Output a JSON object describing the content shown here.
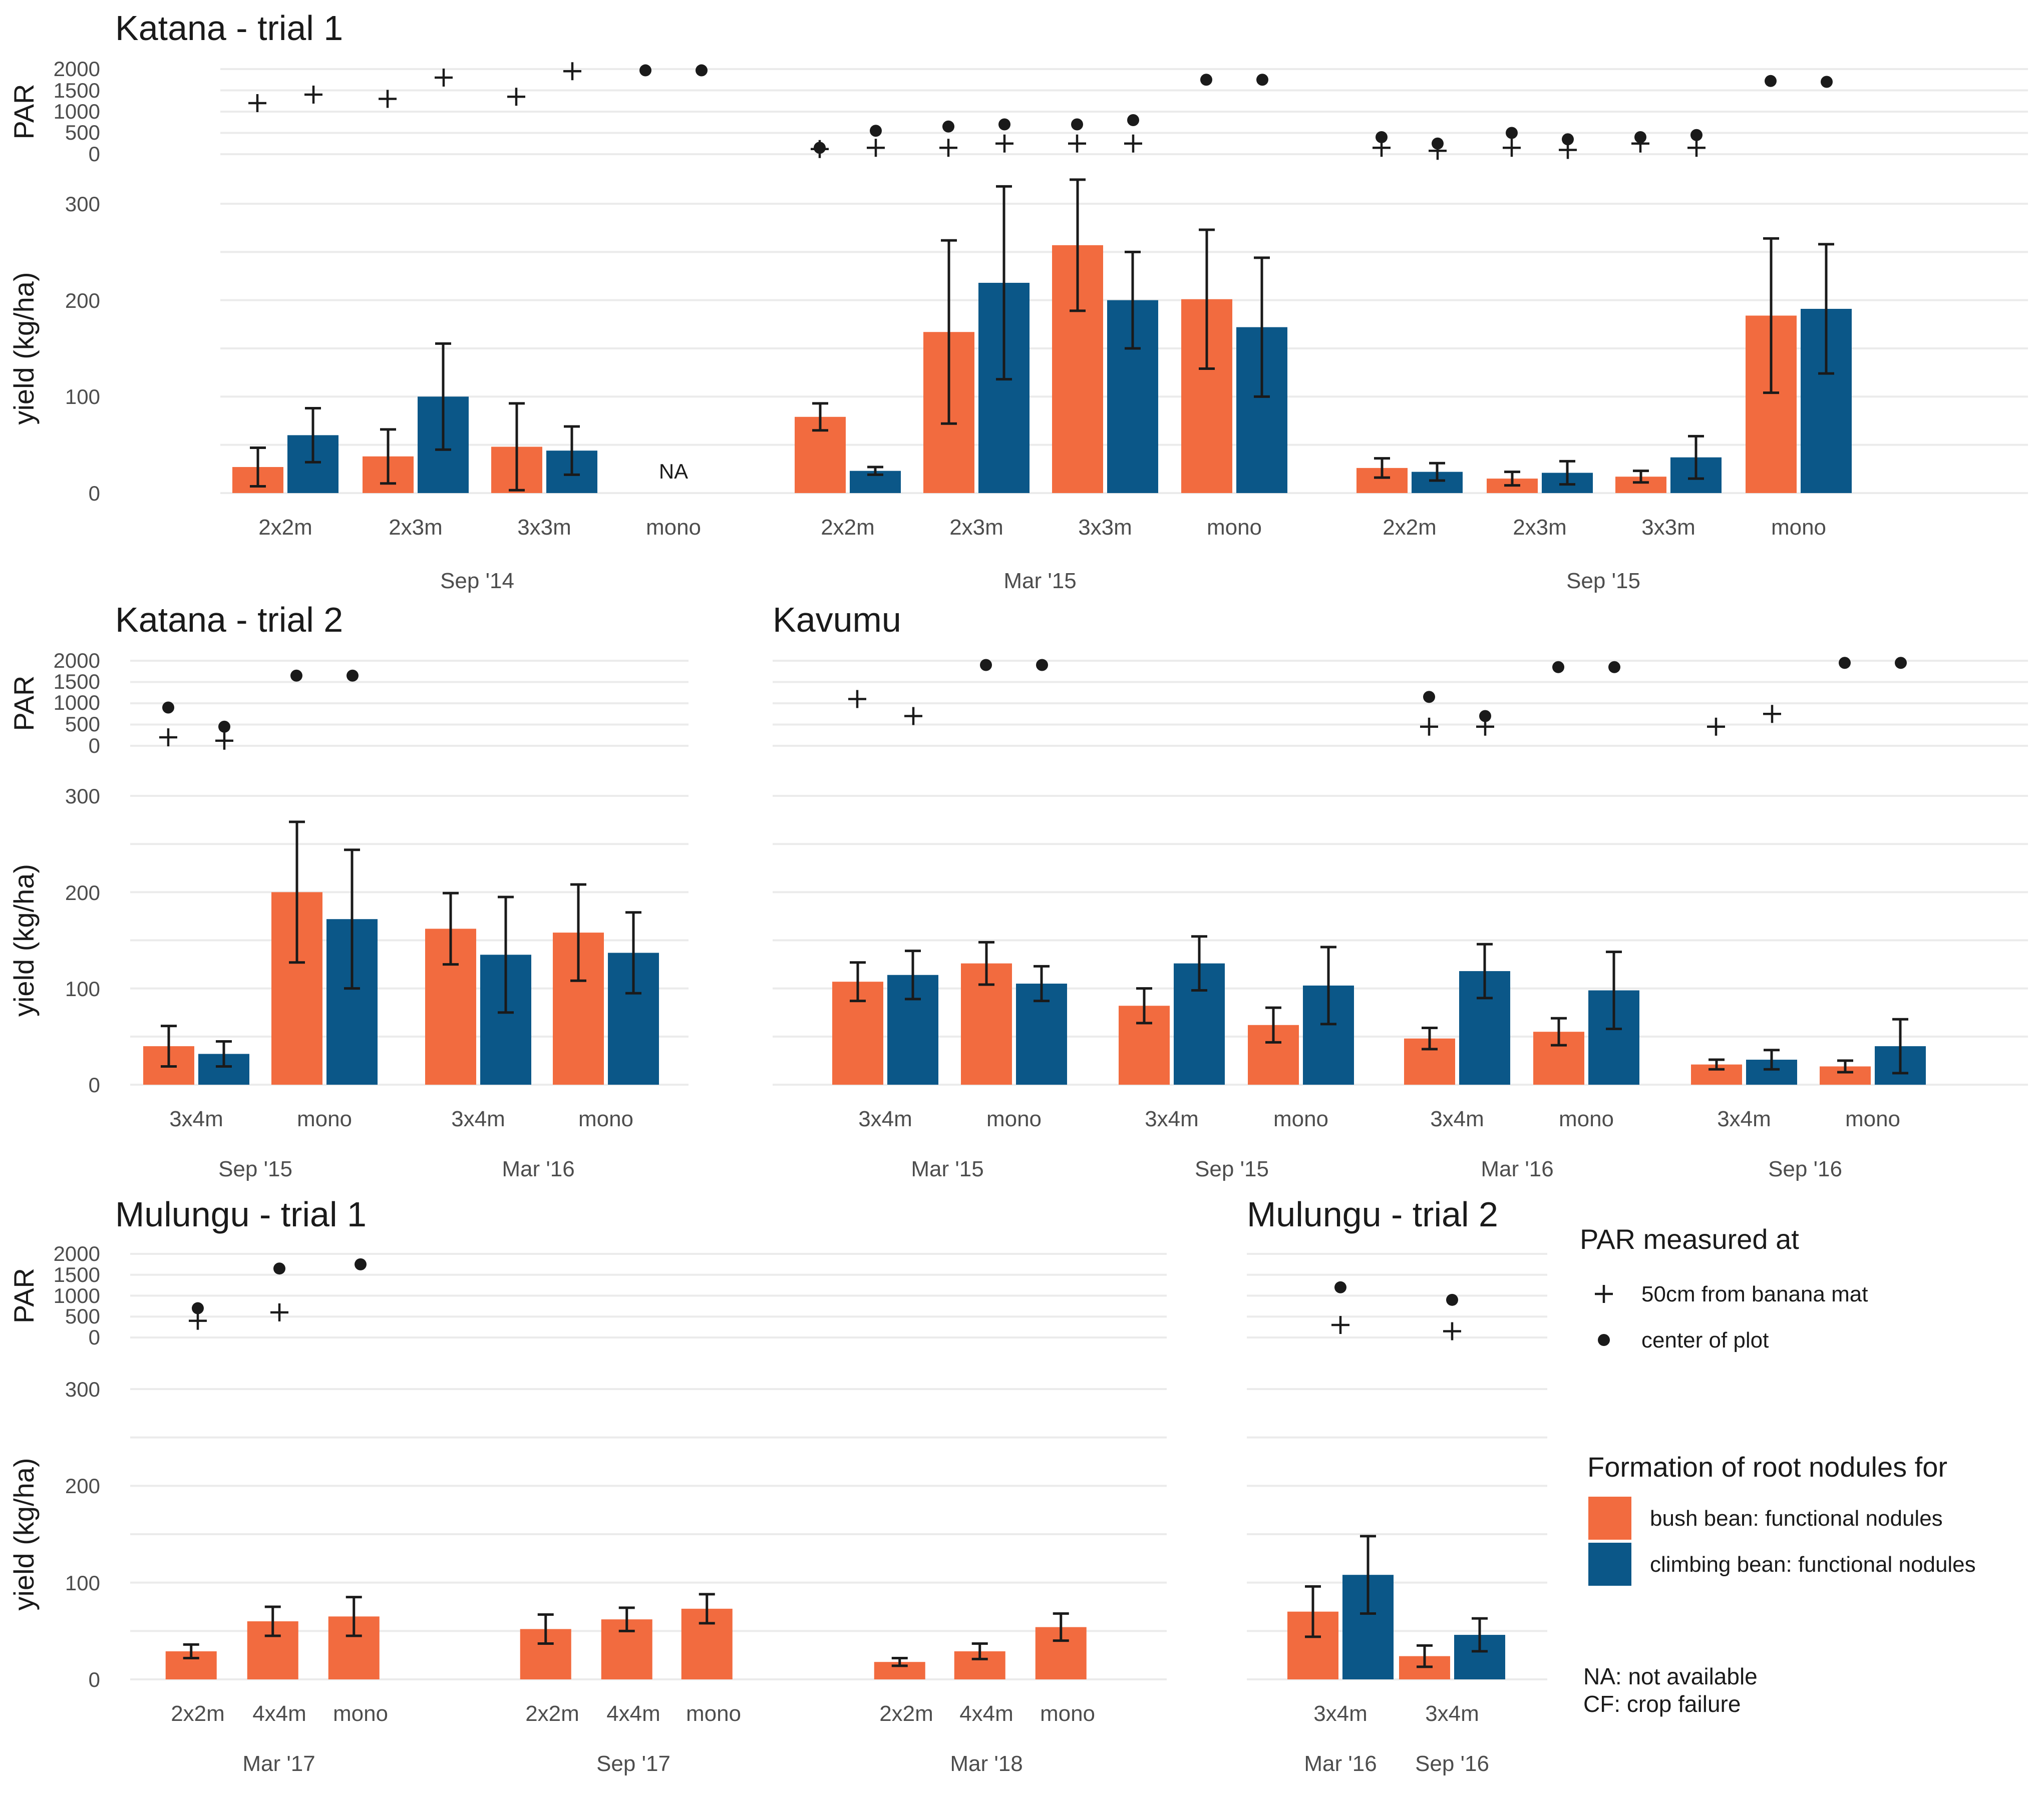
{
  "colors": {
    "bush": "#f26b3f",
    "climbing": "#0b5788",
    "ink": "#1a1a1a"
  },
  "legend": {
    "par_title": "PAR measured at",
    "par_items": [
      {
        "shape": "plus",
        "label": "50cm from banana mat"
      },
      {
        "shape": "dot",
        "label": "center of plot"
      }
    ],
    "fill_title": "Formation of root nodules for",
    "fill_items": [
      {
        "key": "bush",
        "label": "bush bean: functional nodules"
      },
      {
        "key": "climbing",
        "label": "climbing bean: functional nodules"
      }
    ],
    "notes": [
      "NA: not available",
      "CF: crop failure"
    ]
  },
  "chart_data": [
    {
      "type": "bar",
      "title": "Katana - trial 1",
      "ylabel_par": "PAR",
      "ylabel_yield": "yield (kg/ha)",
      "par_ticks": [
        "2000",
        "1500",
        "1000",
        "500",
        "0"
      ],
      "par_range": [
        0,
        2000
      ],
      "yield_ticks": [
        "300",
        "200",
        "100",
        "0"
      ],
      "yield_range": [
        0,
        300
      ],
      "groups": [
        {
          "season": "Sep '14",
          "categories": [
            {
              "label": "2x2m",
              "bush": 27,
              "bush_err": 20,
              "climbing": 60,
              "climbing_err": 28,
              "par_edge": [
                1200,
                1400
              ],
              "par_center": []
            },
            {
              "label": "2x3m",
              "bush": 38,
              "bush_err": 28,
              "climbing": 100,
              "climbing_err": 55,
              "par_edge": [
                1300,
                1800
              ],
              "par_center": []
            },
            {
              "label": "3x3m",
              "bush": 48,
              "bush_err": 45,
              "climbing": 44,
              "climbing_err": 25,
              "par_edge": [
                1350,
                1950
              ],
              "par_center": []
            },
            {
              "label": "mono",
              "na": "NA",
              "par_edge": [],
              "par_center": [
                1970,
                1970
              ]
            }
          ]
        },
        {
          "season": "Mar '15",
          "categories": [
            {
              "label": "2x2m",
              "bush": 79,
              "bush_err": 14,
              "climbing": 23,
              "climbing_err": 4,
              "par_edge": [
                120,
                150
              ],
              "par_center": [
                150,
                550
              ]
            },
            {
              "label": "2x3m",
              "bush": 167,
              "bush_err": 95,
              "climbing": 218,
              "climbing_err": 100,
              "par_edge": [
                150,
                250
              ],
              "par_center": [
                650,
                700
              ]
            },
            {
              "label": "3x3m",
              "bush": 257,
              "bush_err": 68,
              "climbing": 200,
              "climbing_err": 50,
              "par_edge": [
                250,
                250
              ],
              "par_center": [
                700,
                800
              ]
            },
            {
              "label": "mono",
              "par_edge": [],
              "par_center": [
                1750,
                1750
              ]
            }
          ],
          "mono": {
            "bush": 201,
            "bush_err": 72,
            "climbing": 172,
            "climbing_err": 72
          }
        },
        {
          "season": "Sep '15",
          "categories": [
            {
              "label": "2x2m",
              "bush": 26,
              "bush_err": 10,
              "climbing": 22,
              "climbing_err": 9,
              "par_edge": [
                150,
                80
              ],
              "par_center": [
                400,
                250
              ]
            },
            {
              "label": "2x3m",
              "bush": 15,
              "bush_err": 7,
              "climbing": 21,
              "climbing_err": 12,
              "par_edge": [
                150,
                100
              ],
              "par_center": [
                500,
                350
              ]
            },
            {
              "label": "3x3m",
              "bush": 17,
              "bush_err": 6,
              "climbing": 37,
              "climbing_err": 22,
              "par_edge": [
                250,
                150
              ],
              "par_center": [
                400,
                450
              ]
            },
            {
              "label": "mono",
              "par_edge": [],
              "par_center": [
                1720,
                1700
              ]
            }
          ],
          "mono": {
            "bush": 184,
            "bush_err": 80,
            "climbing": 191,
            "climbing_err": 67
          }
        }
      ]
    },
    {
      "type": "bar",
      "title": "Katana - trial 2",
      "ylabel_par": "PAR",
      "ylabel_yield": "yield (kg/ha)",
      "par_ticks": [
        "2000",
        "1500",
        "1000",
        "500",
        "0"
      ],
      "par_range": [
        0,
        2000
      ],
      "yield_ticks": [
        "300",
        "200",
        "100",
        "0"
      ],
      "yield_range": [
        0,
        300
      ],
      "groups": [
        {
          "season": "Sep '15",
          "categories": [
            {
              "label": "3x4m",
              "bush": 40,
              "bush_err": 21,
              "climbing": 32,
              "climbing_err": 13,
              "par_edge": [
                200,
                120
              ],
              "par_center": [
                900,
                450
              ]
            },
            {
              "label": "mono",
              "bush": 200,
              "bush_err": 73,
              "climbing": 172,
              "climbing_err": 72,
              "par_edge": [],
              "par_center": [
                1650,
                1650
              ]
            }
          ]
        },
        {
          "season": "Mar '16",
          "categories": [
            {
              "label": "3x4m",
              "bush": 162,
              "bush_err": 37,
              "climbing": 135,
              "climbing_err": 60
            },
            {
              "label": "mono",
              "bush": 158,
              "bush_err": 50,
              "climbing": 137,
              "climbing_err": 42
            }
          ]
        }
      ]
    },
    {
      "type": "bar",
      "title": "Kavumu",
      "par_range": [
        0,
        2000
      ],
      "yield_range": [
        0,
        300
      ],
      "groups": [
        {
          "season": "Mar '15",
          "categories": [
            {
              "label": "3x4m",
              "bush": 107,
              "bush_err": 20,
              "climbing": 114,
              "climbing_err": 25,
              "par_edge": [
                1100,
                700
              ],
              "par_center": []
            },
            {
              "label": "mono",
              "bush": 126,
              "bush_err": 22,
              "climbing": 105,
              "climbing_err": 18,
              "par_edge": [],
              "par_center": [
                1900,
                1900
              ]
            }
          ]
        },
        {
          "season": "Sep '15",
          "categories": [
            {
              "label": "3x4m",
              "bush": 82,
              "bush_err": 18,
              "climbing": 126,
              "climbing_err": 28
            },
            {
              "label": "mono",
              "bush": 62,
              "bush_err": 18,
              "climbing": 103,
              "climbing_err": 40
            }
          ]
        },
        {
          "season": "Mar '16",
          "categories": [
            {
              "label": "3x4m",
              "bush": 48,
              "bush_err": 11,
              "climbing": 118,
              "climbing_err": 28,
              "par_edge": [
                450,
                450
              ],
              "par_center": [
                1150,
                700
              ]
            },
            {
              "label": "mono",
              "bush": 55,
              "bush_err": 14,
              "climbing": 98,
              "climbing_err": 40,
              "par_edge": [],
              "par_center": [
                1850,
                1850
              ]
            }
          ]
        },
        {
          "season": "Sep '16",
          "categories": [
            {
              "label": "3x4m",
              "bush": 21,
              "bush_err": 5,
              "climbing": 26,
              "climbing_err": 10,
              "par_edge": [
                450,
                750
              ],
              "par_center": []
            },
            {
              "label": "mono",
              "bush": 19,
              "bush_err": 6,
              "climbing": 40,
              "climbing_err": 28,
              "par_edge": [],
              "par_center": [
                1950,
                1950
              ]
            }
          ]
        }
      ]
    },
    {
      "type": "bar",
      "title": "Mulungu - trial 1",
      "ylabel_par": "PAR",
      "ylabel_yield": "yield (kg/ha)",
      "par_ticks": [
        "2000",
        "1500",
        "1000",
        "500",
        "0"
      ],
      "par_range": [
        0,
        2000
      ],
      "yield_ticks": [
        "300",
        "200",
        "100",
        "0"
      ],
      "yield_range": [
        0,
        300
      ],
      "groups": [
        {
          "season": "Mar '17",
          "categories": [
            {
              "label": "2x2m",
              "bush": 29,
              "bush_err": 7,
              "par_edge": [
                400
              ],
              "par_center": [
                700
              ]
            },
            {
              "label": "4x4m",
              "bush": 60,
              "bush_err": 15,
              "par_edge": [
                600
              ],
              "par_center": [
                1650
              ]
            },
            {
              "label": "mono",
              "bush": 65,
              "bush_err": 20,
              "par_center": [
                1750
              ]
            }
          ]
        },
        {
          "season": "Sep '17",
          "categories": [
            {
              "label": "2x2m",
              "bush": 52,
              "bush_err": 15
            },
            {
              "label": "4x4m",
              "bush": 62,
              "bush_err": 12
            },
            {
              "label": "mono",
              "bush": 73,
              "bush_err": 15
            }
          ]
        },
        {
          "season": "Mar '18",
          "categories": [
            {
              "label": "2x2m",
              "bush": 18,
              "bush_err": 4
            },
            {
              "label": "4x4m",
              "bush": 29,
              "bush_err": 8
            },
            {
              "label": "mono",
              "bush": 54,
              "bush_err": 14
            }
          ]
        }
      ]
    },
    {
      "type": "bar",
      "title": "Mulungu - trial 2",
      "par_range": [
        0,
        2000
      ],
      "yield_range": [
        0,
        300
      ],
      "groups": [
        {
          "season": "Mar '16",
          "categories": [
            {
              "label": "3x4m",
              "bush": 70,
              "bush_err": 26,
              "climbing": 108,
              "climbing_err": 40,
              "par_edge": [
                300
              ],
              "par_center": [
                1200
              ]
            }
          ]
        },
        {
          "season": "Sep '16",
          "categories": [
            {
              "label": "3x4m",
              "bush": 24,
              "bush_err": 11,
              "climbing": 46,
              "climbing_err": 17,
              "par_edge": [
                150
              ],
              "par_center": [
                900
              ]
            }
          ]
        }
      ]
    }
  ]
}
